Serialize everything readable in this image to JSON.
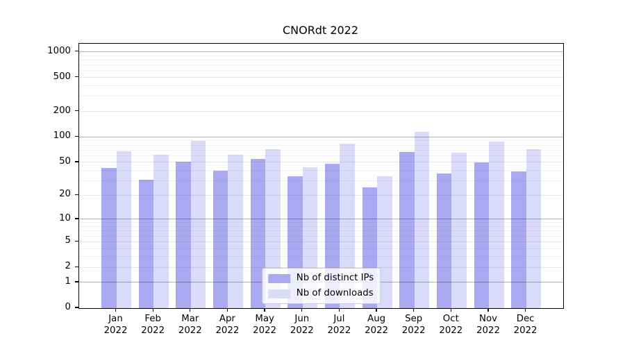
{
  "chart_data": {
    "type": "bar",
    "title": "CNORdt 2022",
    "xlabel": "",
    "ylabel": "",
    "y_scale": "log10(value+1)",
    "ylim": [
      0,
      1100
    ],
    "grid": true,
    "legend_position": "lower center",
    "background_color": "#ffffff",
    "categories": [
      "Jan",
      "Feb",
      "Mar",
      "Apr",
      "May",
      "Jun",
      "Jul",
      "Aug",
      "Sep",
      "Oct",
      "Nov",
      "Dec"
    ],
    "x_ticks": [
      {
        "month": "Jan",
        "year": "2022"
      },
      {
        "month": "Feb",
        "year": "2022"
      },
      {
        "month": "Mar",
        "year": "2022"
      },
      {
        "month": "Apr",
        "year": "2022"
      },
      {
        "month": "May",
        "year": "2022"
      },
      {
        "month": "Jun",
        "year": "2022"
      },
      {
        "month": "Jul",
        "year": "2022"
      },
      {
        "month": "Aug",
        "year": "2022"
      },
      {
        "month": "Sep",
        "year": "2022"
      },
      {
        "month": "Oct",
        "year": "2022"
      },
      {
        "month": "Nov",
        "year": "2022"
      },
      {
        "month": "Dec",
        "year": "2022"
      }
    ],
    "y_axis": {
      "ticks": [
        0,
        1,
        2,
        5,
        10,
        20,
        50,
        100,
        200,
        500,
        1000
      ],
      "decade_ticks": [
        1,
        10,
        100,
        1000
      ],
      "minor_ticks": [
        3,
        4,
        6,
        7,
        8,
        9,
        30,
        40,
        60,
        70,
        80,
        90,
        300,
        400,
        600,
        700,
        800,
        900
      ]
    },
    "series": [
      {
        "name": "Nb of distinct IPs",
        "color": "#a9a9f1",
        "values": [
          43,
          31,
          51,
          40,
          55,
          34,
          48,
          25,
          66,
          37,
          50,
          39
        ]
      },
      {
        "name": "Nb of downloads",
        "color": "#dadaf9",
        "values": [
          68,
          62,
          90,
          61,
          72,
          44,
          84,
          34,
          114,
          65,
          88,
          71
        ]
      }
    ]
  }
}
